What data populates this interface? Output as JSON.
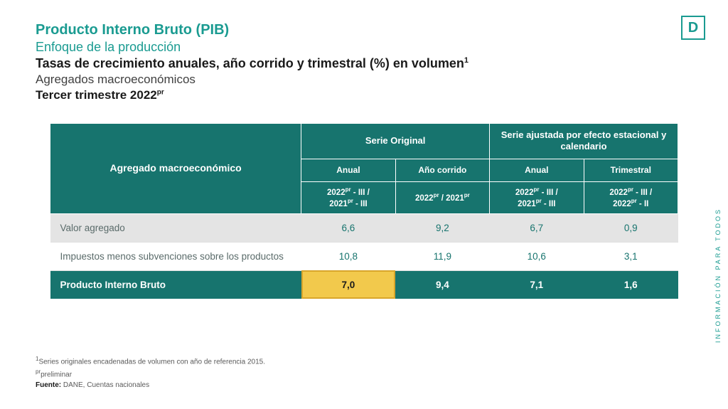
{
  "branding": {
    "logo_letter": "D",
    "side_text": "INFORMACIÓN PARA TODOS"
  },
  "header": {
    "title_teal_bold": "Producto Interno Bruto (PIB)",
    "title_teal_light": "Enfoque de la producción",
    "title_black_bold_1": "Tasas de crecimiento anuales, año corrido y trimestral (%) en volumen",
    "sup1": "1",
    "title_grey": "Agregados macroeconómicos",
    "title_black_bold_2": "Tercer trimestre 2022",
    "sup_pr": "pr"
  },
  "table": {
    "type": "table",
    "colors": {
      "header_bg": "#17746e",
      "header_text": "#ffffff",
      "row_shade": "#e4e4e4",
      "value_text": "#17746e",
      "highlight_bg": "#f2c94c",
      "highlight_text": "#1a1a1a"
    },
    "head": {
      "row_label": "Agregado macroeconómico",
      "group1": "Serie Original",
      "group2": "Serie ajustada por efecto estacional y calendario",
      "sub": {
        "c1": "Anual",
        "c2": "Año corrido",
        "c3": "Anual",
        "c4": "Trimestral"
      },
      "period": {
        "c1a": "2022",
        "c1b": " - III /",
        "c1c": "2021",
        "c1d": " - III",
        "c2a": "2022",
        "c2b": " / 2021",
        "c3a": "2022",
        "c3b": " - III /",
        "c3c": "2021",
        "c3d": " - III",
        "c4a": "2022",
        "c4b": " - III /",
        "c4c": "2022",
        "c4d": " - II"
      }
    },
    "rows": [
      {
        "label": "Valor agregado",
        "shade": true,
        "v": [
          "6,6",
          "9,2",
          "6,7",
          "0,9"
        ]
      },
      {
        "label": "Impuestos menos subvenciones sobre los productos",
        "shade": false,
        "v": [
          "10,8",
          "11,9",
          "10,6",
          "3,1"
        ]
      }
    ],
    "total": {
      "label": "Producto Interno Bruto",
      "v": [
        "7,0",
        "9,4",
        "7,1",
        "1,6"
      ],
      "highlight_col": 0
    }
  },
  "footnotes": {
    "f1_sup": "1",
    "f1": "Series originales encadenadas de volumen con año de referencia 2015.",
    "f2_sup": "pr",
    "f2": "preliminar",
    "source_label": "Fuente:",
    "source_text": " DANE, Cuentas nacionales"
  }
}
